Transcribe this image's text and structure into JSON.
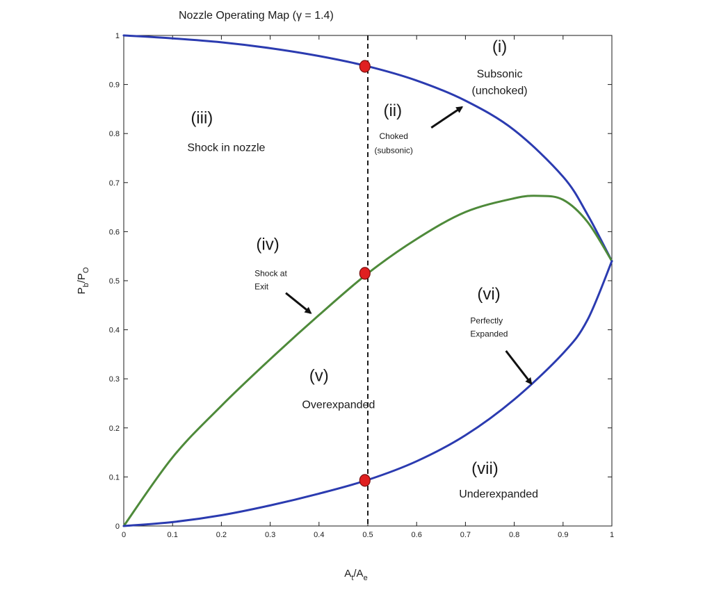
{
  "chart_data": {
    "type": "line",
    "title": "Nozzle Operating Map (γ = 1.4)",
    "xlabel": {
      "main": "A",
      "sub1": "t",
      "sep": "/A",
      "sub2": "e"
    },
    "ylabel": {
      "main": "P",
      "sub1": "b",
      "sep": "/P",
      "sub2": "O"
    },
    "xlim": [
      0,
      1
    ],
    "ylim": [
      0,
      1
    ],
    "xticks": [
      "0",
      "0.1",
      "0.2",
      "0.3",
      "0.4",
      "0.5",
      "0.6",
      "0.7",
      "0.8",
      "0.9",
      "1"
    ],
    "yticks": [
      "0",
      "0.1",
      "0.2",
      "0.3",
      "0.4",
      "0.5",
      "0.6",
      "0.7",
      "0.8",
      "0.9",
      "1"
    ],
    "grid": false,
    "reference_line": {
      "x": 0.5,
      "style": "dashed",
      "color": "#1a1a1a"
    },
    "series": [
      {
        "role": "upper-boundary",
        "color": "#2b3bb0",
        "x": [
          0,
          0.1,
          0.2,
          0.3,
          0.4,
          0.5,
          0.6,
          0.7,
          0.8,
          0.9,
          0.95,
          1.0
        ],
        "y": [
          1.0,
          0.994,
          0.986,
          0.974,
          0.958,
          0.937,
          0.908,
          0.867,
          0.807,
          0.712,
          0.635,
          0.54
        ]
      },
      {
        "role": "middle-boundary",
        "color": "#4e8a3a",
        "x": [
          0,
          0.1,
          0.2,
          0.3,
          0.4,
          0.5,
          0.6,
          0.7,
          0.8,
          0.85,
          0.9,
          0.95,
          1.0
        ],
        "y": [
          0,
          0.14,
          0.245,
          0.34,
          0.43,
          0.515,
          0.585,
          0.64,
          0.668,
          0.673,
          0.665,
          0.62,
          0.54
        ]
      },
      {
        "role": "lower-boundary",
        "color": "#2b3bb0",
        "x": [
          0,
          0.1,
          0.2,
          0.3,
          0.4,
          0.5,
          0.6,
          0.7,
          0.8,
          0.9,
          0.95,
          1.0
        ],
        "y": [
          0,
          0.008,
          0.022,
          0.042,
          0.066,
          0.094,
          0.132,
          0.185,
          0.258,
          0.352,
          0.42,
          0.54
        ]
      }
    ],
    "points": [
      {
        "x": 0.494,
        "y": 0.937,
        "color": "#e02020"
      },
      {
        "x": 0.494,
        "y": 0.515,
        "color": "#e02020"
      },
      {
        "x": 0.494,
        "y": 0.093,
        "color": "#e02020"
      }
    ],
    "annotations": [
      {
        "lines": [
          "(i)"
        ],
        "x": 0.77,
        "y": 0.966,
        "size": 24,
        "anchor": "middle"
      },
      {
        "lines": [
          "Subsonic",
          "(unchoked)"
        ],
        "x": 0.77,
        "y": 0.914,
        "size": 16,
        "anchor": "middle",
        "lh": 0.034
      },
      {
        "lines": [
          "(ii)"
        ],
        "x": 0.551,
        "y": 0.836,
        "size": 24,
        "anchor": "middle"
      },
      {
        "lines": [
          "Choked",
          "(subsonic)"
        ],
        "x": 0.553,
        "y": 0.789,
        "size": 12,
        "anchor": "middle",
        "lh": 0.029
      },
      {
        "lines": [
          "(iii)"
        ],
        "x": 0.16,
        "y": 0.821,
        "size": 24,
        "anchor": "middle"
      },
      {
        "lines": [
          "Shock in nozzle"
        ],
        "x": 0.21,
        "y": 0.764,
        "size": 16,
        "anchor": "middle"
      },
      {
        "lines": [
          "(iv)"
        ],
        "x": 0.295,
        "y": 0.563,
        "size": 24,
        "anchor": "middle"
      },
      {
        "lines": [
          "Shock at",
          "Exit"
        ],
        "x": 0.268,
        "y": 0.509,
        "size": 12,
        "anchor": "start",
        "lh": 0.027
      },
      {
        "lines": [
          "(v)"
        ],
        "x": 0.4,
        "y": 0.295,
        "size": 24,
        "anchor": "middle"
      },
      {
        "lines": [
          "Overexpanded"
        ],
        "x": 0.44,
        "y": 0.24,
        "size": 16,
        "anchor": "middle"
      },
      {
        "lines": [
          "(vi)"
        ],
        "x": 0.748,
        "y": 0.462,
        "size": 24,
        "anchor": "middle"
      },
      {
        "lines": [
          "Perfectly",
          "Expanded"
        ],
        "x": 0.71,
        "y": 0.413,
        "size": 12,
        "anchor": "start",
        "lh": 0.027
      },
      {
        "lines": [
          "(vii)"
        ],
        "x": 0.74,
        "y": 0.106,
        "size": 24,
        "anchor": "middle"
      },
      {
        "lines": [
          "Underexpanded"
        ],
        "x": 0.768,
        "y": 0.058,
        "size": 16,
        "anchor": "middle"
      }
    ],
    "arrows": [
      {
        "from": [
          0.63,
          0.812
        ],
        "to": [
          0.693,
          0.854
        ]
      },
      {
        "from": [
          0.332,
          0.475
        ],
        "to": [
          0.383,
          0.434
        ]
      },
      {
        "from": [
          0.783,
          0.357
        ],
        "to": [
          0.835,
          0.29
        ]
      }
    ]
  }
}
